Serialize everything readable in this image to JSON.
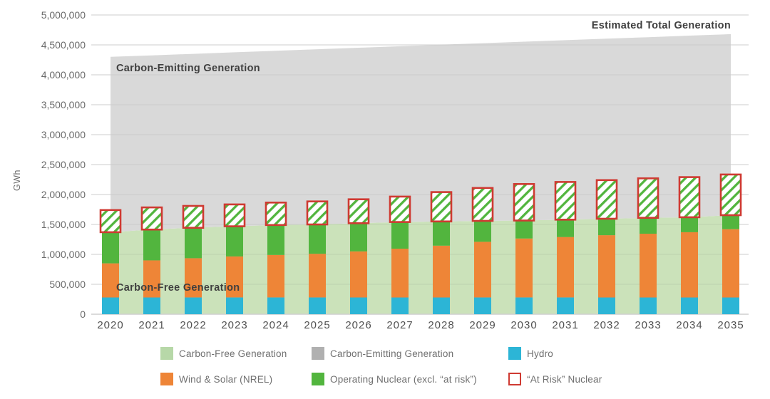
{
  "chart_data": {
    "type": "combo-stacked-bar-area",
    "title": "",
    "xlabel": "",
    "ylabel": "GWh",
    "ylim": [
      0,
      5000000
    ],
    "ytick_step": 500000,
    "ytick_labels": [
      "5,000,000",
      "4,500,000",
      "4,000,000",
      "3,500,000",
      "3,000,000",
      "2,500,000",
      "2,000,000",
      "1,500,000",
      "1,000,000",
      "500,000",
      "0"
    ],
    "grid": true,
    "categories": [
      2020,
      2021,
      2022,
      2023,
      2024,
      2025,
      2026,
      2027,
      2028,
      2029,
      2030,
      2031,
      2032,
      2033,
      2034,
      2035
    ],
    "series": [
      {
        "name": "Hydro",
        "type": "bar",
        "color": "#2cb5d6",
        "values": [
          280000,
          280000,
          280000,
          280000,
          280000,
          280000,
          280000,
          280000,
          280000,
          280000,
          280000,
          280000,
          280000,
          280000,
          280000,
          280000
        ]
      },
      {
        "name": "Wind & Solar (NREL)",
        "type": "bar",
        "color": "#ee8537",
        "values": [
          570000,
          620000,
          655000,
          685000,
          710000,
          730000,
          770000,
          815000,
          865000,
          930000,
          985000,
          1010000,
          1040000,
          1065000,
          1090000,
          1140000
        ]
      },
      {
        "name": "Operating Nuclear (excl. “at risk”)",
        "type": "bar",
        "color": "#52b53e",
        "values": [
          520000,
          515000,
          510000,
          505000,
          500000,
          490000,
          470000,
          445000,
          405000,
          350000,
          300000,
          290000,
          275000,
          265000,
          250000,
          235000
        ]
      },
      {
        "name": "“At Risk” Nuclear",
        "type": "bar-hatched",
        "color": "#ffffff",
        "hatch_color": "#52b53e",
        "border_color": "#cf3a32",
        "values": [
          370000,
          370000,
          365000,
          365000,
          375000,
          385000,
          400000,
          425000,
          490000,
          550000,
          610000,
          630000,
          645000,
          660000,
          670000,
          680000
        ]
      },
      {
        "name": "Carbon-Free Generation",
        "type": "area",
        "color": "#cbe2ba",
        "note": "area top equals Hydro + Wind & Solar + Operating Nuclear",
        "values": [
          1370000,
          1415000,
          1445000,
          1470000,
          1490000,
          1500000,
          1520000,
          1540000,
          1550000,
          1560000,
          1565000,
          1580000,
          1595000,
          1610000,
          1620000,
          1655000
        ]
      },
      {
        "name": "Carbon-Emitting Generation",
        "type": "area",
        "color": "#d9d9d9",
        "note": "band between carbon-free total and estimated total generation",
        "values": [
          4300000,
          4325000,
          4350000,
          4376000,
          4401000,
          4427000,
          4452000,
          4477000,
          4503000,
          4528000,
          4553000,
          4579000,
          4604000,
          4629000,
          4655000,
          4680000
        ]
      }
    ],
    "annotations": {
      "carbon_emitting": "Carbon-Emitting Generation",
      "estimated_total": "Estimated Total Generation",
      "carbon_free": "Carbon-Free Generation"
    },
    "legend_position": "bottom"
  },
  "legend": {
    "rows": [
      [
        {
          "label": "Carbon-Free Generation",
          "swatch": "#b7d8a8",
          "style": "solid"
        },
        {
          "label": "Carbon-Emitting Generation",
          "swatch": "#b0b0b0",
          "style": "solid"
        },
        {
          "label": "Hydro",
          "swatch": "#2cb5d6",
          "style": "solid"
        }
      ],
      [
        {
          "label": "Wind & Solar (NREL)",
          "swatch": "#ee8537",
          "style": "solid"
        },
        {
          "label": "Operating Nuclear (excl. “at risk”)",
          "swatch": "#52b53e",
          "style": "solid"
        },
        {
          "label": "“At Risk” Nuclear",
          "swatch": "#ffffff",
          "style": "outlined",
          "border": "#cf3a32"
        }
      ]
    ]
  },
  "colors": {
    "grid_line": "#e4e4e4",
    "axis_line": "#cfcfcf",
    "tick_text": "#6b6b6b",
    "x_tick_text": "#515151",
    "annotation_text": "#3f3f3f"
  }
}
